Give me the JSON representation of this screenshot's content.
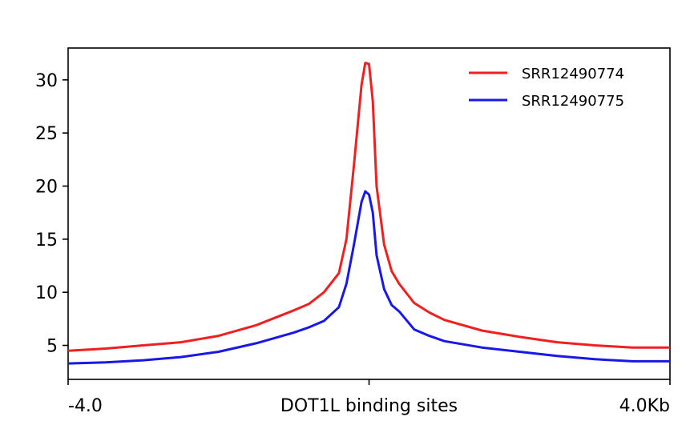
{
  "chart_data": {
    "type": "line",
    "title": "",
    "ylabel": "",
    "xlabel": "",
    "xlim": [
      -4.0,
      4.0
    ],
    "ylim": [
      1.8,
      33.0
    ],
    "y_ticks": [
      5,
      10,
      15,
      20,
      25,
      30
    ],
    "x_ticks": [
      {
        "value": -4.0,
        "label": "-4.0"
      },
      {
        "value": 0,
        "label": "DOT1L binding sites"
      },
      {
        "value": 4.0,
        "label": "4.0Kb"
      }
    ],
    "grid": false,
    "legend_position": "top-right",
    "x": [
      -4.0,
      -3.5,
      -3.0,
      -2.5,
      -2.0,
      -1.5,
      -1.0,
      -0.8,
      -0.6,
      -0.4,
      -0.3,
      -0.2,
      -0.1,
      -0.05,
      0.0,
      0.05,
      0.1,
      0.2,
      0.3,
      0.4,
      0.6,
      0.8,
      1.0,
      1.5,
      2.0,
      2.5,
      3.0,
      3.5,
      4.0
    ],
    "series": [
      {
        "name": "SRR12490774",
        "color": "#f02020",
        "values": [
          4.5,
          4.7,
          5.0,
          5.3,
          5.9,
          6.9,
          8.3,
          8.9,
          10.0,
          11.8,
          15.0,
          22.0,
          29.5,
          31.6,
          31.5,
          28.0,
          20.0,
          14.5,
          12.0,
          10.8,
          9.0,
          8.1,
          7.4,
          6.4,
          5.8,
          5.3,
          5.0,
          4.8,
          4.8
        ]
      },
      {
        "name": "SRR12490775",
        "color": "#1818e8",
        "values": [
          3.3,
          3.4,
          3.6,
          3.9,
          4.4,
          5.2,
          6.2,
          6.7,
          7.3,
          8.6,
          10.8,
          14.5,
          18.5,
          19.5,
          19.2,
          17.5,
          13.5,
          10.3,
          8.8,
          8.2,
          6.5,
          5.9,
          5.4,
          4.8,
          4.4,
          4.0,
          3.7,
          3.5,
          3.5
        ]
      }
    ]
  }
}
